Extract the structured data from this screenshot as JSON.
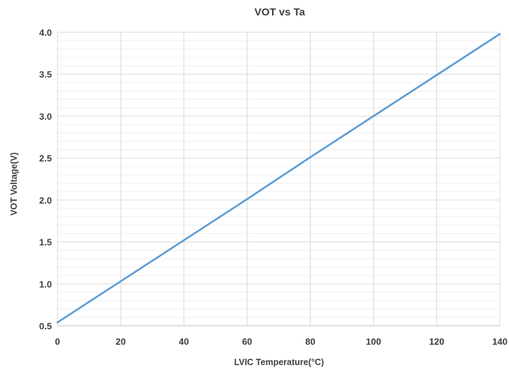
{
  "chart_data": {
    "type": "line",
    "title": "VOT vs Ta",
    "xlabel": "LVIC Temperature(°C)",
    "ylabel": "VOT Voltage(V)",
    "xlim": [
      0,
      140
    ],
    "ylim": [
      0.5,
      4.0
    ],
    "x_ticks": [
      "0",
      "20",
      "40",
      "60",
      "80",
      "100",
      "120",
      "140"
    ],
    "y_ticks": [
      "0.5",
      "1.0",
      "1.5",
      "2.0",
      "2.5",
      "3.0",
      "3.5",
      "4.0"
    ],
    "grid": true,
    "minor_grid": true,
    "legend": "none",
    "series": [
      {
        "color": "#5b9bd5",
        "x": [
          0,
          20,
          40,
          60,
          80,
          100,
          120,
          140
        ],
        "y": [
          0.54,
          1.03,
          1.52,
          2.01,
          2.51,
          3.0,
          3.49,
          3.98
        ]
      }
    ]
  }
}
